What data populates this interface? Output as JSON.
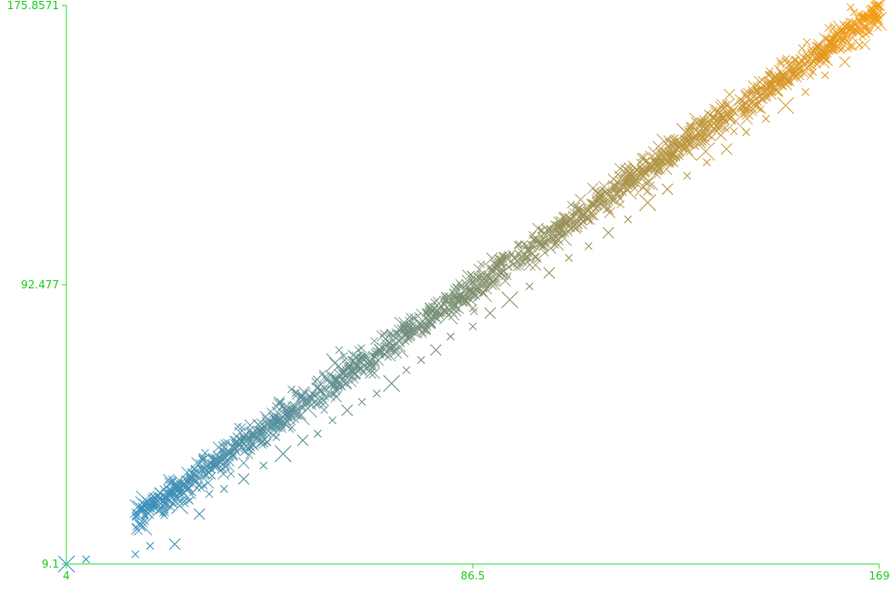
{
  "chart_data": {
    "type": "scatter",
    "marker": "x",
    "title": "",
    "xlabel": "",
    "ylabel": "",
    "xlim": [
      4,
      169
    ],
    "ylim": [
      9.1,
      175.8571
    ],
    "x_ticks": [
      4,
      86.5,
      169
    ],
    "x_tick_labels": [
      "4",
      "86.5",
      "169"
    ],
    "y_ticks": [
      9.1,
      92.477,
      175.8571
    ],
    "y_tick_labels": [
      "9.1",
      "92.477",
      "175.8571"
    ],
    "grid": false,
    "legend": "none",
    "color_encoding": "x value, gradient from blue to orange",
    "colors": {
      "axis": "#33dd33",
      "tick_text": "#22cc22",
      "gradient_start": "#2a8fcf",
      "gradient_mid": "#7f8f6e",
      "gradient_end": "#f59a10"
    },
    "trend": {
      "description": "roughly linear increasing relationship with noise",
      "slope": 1.0,
      "intercept": 5.0
    },
    "series": [
      {
        "points": [
          [
            4,
            9.1
          ],
          [
            8,
            10.5
          ],
          [
            18,
            12.0
          ],
          [
            19,
            20.5
          ],
          [
            21,
            14.5
          ],
          [
            24,
            26.0
          ],
          [
            26,
            15.0
          ],
          [
            27,
            26.5
          ],
          [
            29,
            28.0
          ],
          [
            31,
            24.0
          ],
          [
            33,
            30.0
          ],
          [
            36,
            31.5
          ],
          [
            40,
            34.5
          ],
          [
            44,
            38.5
          ],
          [
            48,
            42.0
          ],
          [
            52,
            46.0
          ],
          [
            55,
            48.0
          ],
          [
            58,
            52.0
          ],
          [
            61,
            55.0
          ],
          [
            64,
            57.5
          ],
          [
            67,
            60.0
          ],
          [
            70,
            63.0
          ],
          [
            73,
            67.0
          ],
          [
            76,
            70.0
          ],
          [
            79,
            73.0
          ],
          [
            82,
            77.0
          ],
          [
            86.5,
            80.0
          ],
          [
            90,
            84.0
          ],
          [
            94,
            88.0
          ],
          [
            98,
            92.0
          ],
          [
            102,
            96.0
          ],
          [
            106,
            100.5
          ],
          [
            110,
            104.0
          ],
          [
            114,
            108.0
          ],
          [
            118,
            112.0
          ],
          [
            122,
            117.0
          ],
          [
            126,
            121.0
          ],
          [
            130,
            125.0
          ],
          [
            134,
            129.0
          ],
          [
            138,
            133.0
          ],
          [
            142,
            138.0
          ],
          [
            146,
            142.0
          ],
          [
            150,
            146.0
          ],
          [
            154,
            150.0
          ],
          [
            158,
            155.0
          ],
          [
            162,
            159.0
          ],
          [
            165,
            164.0
          ],
          [
            167,
            168.0
          ],
          [
            169,
            175.8571
          ]
        ]
      }
    ]
  }
}
